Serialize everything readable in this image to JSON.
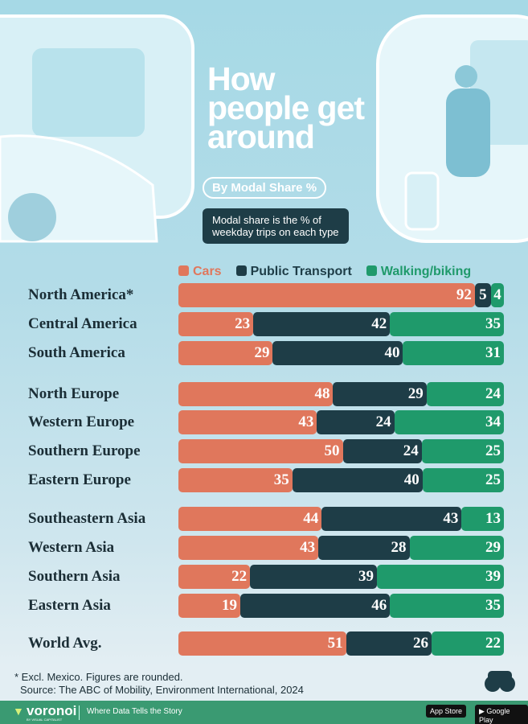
{
  "title": "How people get around",
  "subtitle": "By Modal Share %",
  "note": "Modal share is the % of weekday trips on each type",
  "colors": {
    "cars": "#e0775c",
    "public": "#1e3d47",
    "walking": "#1f9a6b"
  },
  "chart_data": {
    "type": "bar",
    "orientation": "horizontal-stacked",
    "categories": [
      "North America*",
      "Central America",
      "South America",
      "North Europe",
      "Western Europe",
      "Southern Europe",
      "Eastern Europe",
      "Southeastern Asia",
      "Western Asia",
      "Southern Asia",
      "Eastern Asia",
      "World Avg."
    ],
    "series": [
      {
        "name": "Cars",
        "values": [
          92,
          23,
          29,
          48,
          43,
          50,
          35,
          44,
          43,
          22,
          19,
          51
        ]
      },
      {
        "name": "Public Transport",
        "values": [
          5,
          42,
          40,
          29,
          24,
          24,
          40,
          43,
          28,
          39,
          46,
          26
        ]
      },
      {
        "name": "Walking/biking",
        "values": [
          4,
          35,
          31,
          24,
          34,
          25,
          25,
          13,
          29,
          39,
          35,
          22
        ]
      }
    ],
    "legend": "top"
  },
  "footnote": "* Excl. Mexico. Figures are rounded.",
  "source": "Source: The ABC of Mobility, Environment International, 2024",
  "footer": {
    "brand": "voronoi",
    "brand_sub": "BY VISUAL CAPITALIST",
    "tagline": "Where Data Tells the Story",
    "app_store": "App Store",
    "google_play": "Google Play"
  }
}
